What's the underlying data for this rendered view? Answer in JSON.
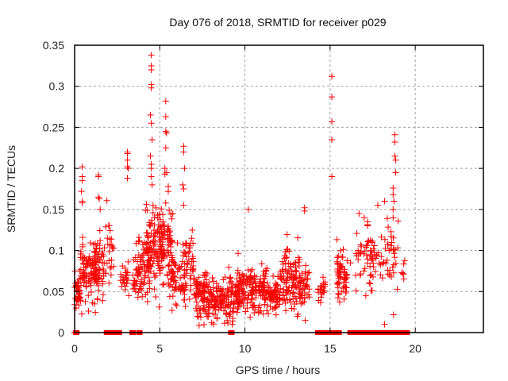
{
  "chart_data": {
    "type": "scatter",
    "title": "Day 076 of 2018, SRMTID for receiver p029",
    "xlabel": "GPS time / hours",
    "ylabel": "SRMTID / TECUs",
    "xlim": [
      0,
      24
    ],
    "ylim": [
      0,
      0.35
    ],
    "x_ticks": [
      0,
      5,
      10,
      15,
      20
    ],
    "x_tick_labels": [
      "0",
      "5",
      "10",
      "15",
      "20"
    ],
    "y_ticks": [
      0,
      0.05,
      0.1,
      0.15,
      0.2,
      0.25,
      0.3,
      0.35
    ],
    "y_tick_labels": [
      "0",
      "0.05",
      "0.1",
      "0.15",
      "0.2",
      "0.25",
      "0.3",
      "0.35"
    ],
    "grid": true,
    "legend": "none",
    "marker": "plus",
    "color": "#ff0000",
    "series": [
      {
        "name": "SRMTID",
        "note": "dense point clouds summarized as clusters (x range in hours, mean & spread in TECU, count), plus explicitly read outliers",
        "clusters": [
          {
            "x": [
              0.0,
              0.35
            ],
            "mean": 0.05,
            "sd": 0.012,
            "n": 40
          },
          {
            "x": [
              0.35,
              1.5
            ],
            "mean": 0.075,
            "sd": 0.018,
            "n": 110
          },
          {
            "x": [
              1.1,
              1.8
            ],
            "mean": 0.075,
            "sd": 0.02,
            "n": 40
          },
          {
            "x": [
              1.8,
              2.3
            ],
            "mean": 0.1,
            "sd": 0.02,
            "n": 25
          },
          {
            "x": [
              2.7,
              3.2
            ],
            "mean": 0.065,
            "sd": 0.015,
            "n": 25
          },
          {
            "x": [
              3.4,
              4.0
            ],
            "mean": 0.065,
            "sd": 0.015,
            "n": 30
          },
          {
            "x": [
              3.6,
              4.4
            ],
            "mean": 0.085,
            "sd": 0.022,
            "n": 50
          },
          {
            "x": [
              4.2,
              5.2
            ],
            "mean": 0.1,
            "sd": 0.025,
            "n": 110
          },
          {
            "x": [
              5.0,
              5.8
            ],
            "mean": 0.11,
            "sd": 0.025,
            "n": 60
          },
          {
            "x": [
              5.5,
              6.3
            ],
            "mean": 0.07,
            "sd": 0.02,
            "n": 55
          },
          {
            "x": [
              6.3,
              7.0
            ],
            "mean": 0.075,
            "sd": 0.02,
            "n": 60
          },
          {
            "x": [
              7.0,
              7.8
            ],
            "mean": 0.05,
            "sd": 0.015,
            "n": 80
          },
          {
            "x": [
              7.8,
              8.8
            ],
            "mean": 0.04,
            "sd": 0.012,
            "n": 90
          },
          {
            "x": [
              8.8,
              9.8
            ],
            "mean": 0.042,
            "sd": 0.013,
            "n": 80
          },
          {
            "x": [
              9.5,
              10.4
            ],
            "mean": 0.05,
            "sd": 0.015,
            "n": 70
          },
          {
            "x": [
              10.4,
              11.3
            ],
            "mean": 0.05,
            "sd": 0.016,
            "n": 80
          },
          {
            "x": [
              11.3,
              12.1
            ],
            "mean": 0.045,
            "sd": 0.012,
            "n": 70
          },
          {
            "x": [
              12.1,
              13.2
            ],
            "mean": 0.065,
            "sd": 0.018,
            "n": 100
          },
          {
            "x": [
              13.2,
              13.8
            ],
            "mean": 0.055,
            "sd": 0.014,
            "n": 45
          },
          {
            "x": [
              14.3,
              14.7
            ],
            "mean": 0.05,
            "sd": 0.006,
            "n": 20
          },
          {
            "x": [
              15.4,
              16.0
            ],
            "mean": 0.07,
            "sd": 0.015,
            "n": 60
          },
          {
            "x": [
              16.5,
              17.5
            ],
            "mean": 0.095,
            "sd": 0.022,
            "n": 35
          },
          {
            "x": [
              17.3,
              18.3
            ],
            "mean": 0.085,
            "sd": 0.02,
            "n": 35
          },
          {
            "x": [
              18.3,
              19.0
            ],
            "mean": 0.1,
            "sd": 0.03,
            "n": 30
          },
          {
            "x": [
              19.2,
              19.5
            ],
            "mean": 0.075,
            "sd": 0.01,
            "n": 6
          }
        ],
        "points": [
          [
            0.45,
            0.202
          ],
          [
            0.45,
            0.19
          ],
          [
            0.45,
            0.185
          ],
          [
            0.4,
            0.172
          ],
          [
            0.45,
            0.158
          ],
          [
            0.45,
            0.16
          ],
          [
            1.4,
            0.19
          ],
          [
            1.4,
            0.192
          ],
          [
            1.4,
            0.165
          ],
          [
            1.45,
            0.163
          ],
          [
            1.5,
            0.15
          ],
          [
            3.1,
            0.22
          ],
          [
            3.1,
            0.218
          ],
          [
            3.1,
            0.21
          ],
          [
            3.15,
            0.2
          ],
          [
            3.1,
            0.202
          ],
          [
            3.1,
            0.188
          ],
          [
            4.5,
            0.338
          ],
          [
            4.5,
            0.325
          ],
          [
            4.5,
            0.32
          ],
          [
            4.5,
            0.302
          ],
          [
            4.5,
            0.298
          ],
          [
            4.45,
            0.265
          ],
          [
            4.5,
            0.255
          ],
          [
            4.55,
            0.235
          ],
          [
            4.45,
            0.215
          ],
          [
            4.5,
            0.205
          ],
          [
            4.5,
            0.2
          ],
          [
            4.55,
            0.18
          ],
          [
            4.5,
            0.19
          ],
          [
            5.35,
            0.282
          ],
          [
            5.35,
            0.263
          ],
          [
            5.35,
            0.245
          ],
          [
            5.4,
            0.243
          ],
          [
            5.35,
            0.225
          ],
          [
            5.4,
            0.195
          ],
          [
            5.3,
            0.2
          ],
          [
            5.3,
            0.193
          ],
          [
            5.5,
            0.178
          ],
          [
            5.5,
            0.172
          ],
          [
            6.4,
            0.227
          ],
          [
            6.4,
            0.22
          ],
          [
            6.45,
            0.2
          ],
          [
            6.35,
            0.18
          ],
          [
            6.4,
            0.175
          ],
          [
            6.4,
            0.155
          ],
          [
            10.2,
            0.15
          ],
          [
            13.5,
            0.152
          ],
          [
            13.5,
            0.148
          ],
          [
            15.1,
            0.312
          ],
          [
            15.1,
            0.287
          ],
          [
            15.1,
            0.257
          ],
          [
            15.1,
            0.235
          ],
          [
            15.1,
            0.19
          ],
          [
            18.8,
            0.241
          ],
          [
            18.8,
            0.232
          ],
          [
            18.8,
            0.215
          ],
          [
            18.85,
            0.21
          ],
          [
            18.85,
            0.195
          ],
          [
            18.7,
            0.176
          ],
          [
            18.7,
            0.168
          ],
          [
            18.75,
            0.16
          ],
          [
            18.7,
            0.15
          ],
          [
            18.7,
            0.14
          ],
          [
            18.2,
            0.16
          ],
          [
            17.8,
            0.155
          ],
          [
            16.7,
            0.145
          ],
          [
            17.0,
            0.14
          ],
          [
            17.2,
            0.135
          ],
          [
            17.2,
            0.13
          ],
          [
            16.2,
            0.085
          ],
          [
            16.5,
            0.07
          ],
          [
            18.2,
            0.01
          ],
          [
            8.05,
            0.012
          ],
          [
            7.2,
            0.02
          ],
          [
            9.1,
            0.02
          ]
        ],
        "zero_markers": [
          0.1,
          1.9,
          2.0,
          2.1,
          2.3,
          2.4,
          2.6,
          3.4,
          3.8,
          9.2,
          14.3,
          14.4,
          14.5,
          14.8,
          15.0,
          15.1,
          15.2,
          15.3,
          15.4,
          15.5,
          16.2,
          16.3,
          16.4,
          16.5,
          16.8,
          17.1,
          17.4,
          17.7,
          18.0,
          18.3,
          18.6,
          18.9,
          19.1,
          19.2,
          19.5
        ]
      }
    ]
  }
}
